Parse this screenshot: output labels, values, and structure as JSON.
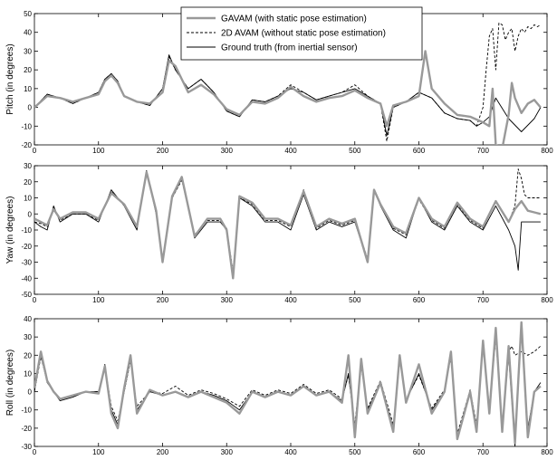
{
  "chart_data": [
    {
      "type": "line",
      "ylabel": "Pitch (in degrees)",
      "xlim": [
        0,
        800
      ],
      "ylim": [
        -20,
        50
      ],
      "xticks": [
        0,
        100,
        200,
        300,
        400,
        500,
        600,
        700,
        800
      ],
      "yticks": [
        -20,
        -10,
        0,
        10,
        20,
        30,
        40,
        50
      ],
      "grid": false,
      "legend": {
        "placement": "top-right",
        "entries": [
          {
            "label": "GAVAM (with static pose estimation)",
            "color": "#999999",
            "style": "thick-solid"
          },
          {
            "label": "2D AVAM (without static pose estimation)",
            "color": "#000000",
            "style": "dashed"
          },
          {
            "label": "Ground truth (from inertial sensor)",
            "color": "#000000",
            "style": "solid"
          }
        ]
      },
      "series": [
        {
          "color": "#000000",
          "style": "solid",
          "x": [
            0,
            20,
            40,
            60,
            80,
            100,
            110,
            120,
            130,
            140,
            160,
            180,
            200,
            210,
            220,
            240,
            260,
            280,
            300,
            320,
            340,
            360,
            380,
            400,
            420,
            440,
            460,
            480,
            500,
            520,
            540,
            550,
            560,
            580,
            600,
            620,
            640,
            660,
            680,
            690,
            700,
            710,
            720,
            740,
            760,
            780,
            790
          ],
          "y": [
            0,
            7,
            5,
            2,
            5,
            8,
            15,
            18,
            14,
            6,
            3,
            1,
            10,
            28,
            20,
            10,
            15,
            8,
            -2,
            -5,
            4,
            3,
            6,
            10,
            8,
            4,
            6,
            8,
            10,
            6,
            2,
            -15,
            0,
            3,
            8,
            5,
            -3,
            -6,
            -7,
            -10,
            -8,
            -5,
            5,
            -6,
            -13,
            -6,
            0
          ]
        },
        {
          "color": "#000000",
          "style": "dashed",
          "x": [
            0,
            20,
            40,
            60,
            80,
            100,
            110,
            120,
            130,
            140,
            160,
            180,
            200,
            210,
            220,
            240,
            260,
            280,
            300,
            320,
            340,
            360,
            380,
            400,
            420,
            440,
            460,
            480,
            500,
            520,
            540,
            550,
            560,
            580,
            600,
            620,
            640,
            660,
            680,
            690,
            700,
            705,
            710,
            715,
            720,
            725,
            730,
            735,
            740,
            745,
            750,
            755,
            760,
            765,
            770,
            775,
            780,
            785,
            790
          ],
          "y": [
            0,
            7,
            5,
            2,
            5,
            8,
            15,
            18,
            14,
            6,
            3,
            1,
            10,
            27,
            20,
            10,
            15,
            8,
            -2,
            -5,
            4,
            3,
            6,
            12,
            8,
            4,
            6,
            8,
            12,
            6,
            2,
            -18,
            0,
            3,
            8,
            5,
            -3,
            -6,
            -7,
            -10,
            0,
            20,
            38,
            42,
            20,
            45,
            44,
            36,
            40,
            42,
            30,
            38,
            42,
            40,
            43,
            42,
            44,
            43,
            44
          ]
        },
        {
          "color": "#999999",
          "style": "thick-solid",
          "x": [
            0,
            20,
            40,
            60,
            80,
            100,
            110,
            120,
            130,
            140,
            160,
            180,
            200,
            210,
            220,
            240,
            260,
            280,
            300,
            320,
            340,
            360,
            380,
            400,
            420,
            440,
            460,
            480,
            500,
            520,
            540,
            550,
            560,
            580,
            600,
            610,
            620,
            640,
            660,
            680,
            700,
            710,
            715,
            720,
            730,
            740,
            745,
            750,
            760,
            770,
            780,
            790
          ],
          "y": [
            0,
            6,
            5,
            3,
            5,
            7,
            14,
            17,
            13,
            6,
            3,
            2,
            8,
            25,
            22,
            8,
            12,
            7,
            -1,
            -4,
            3,
            2,
            5,
            11,
            6,
            3,
            5,
            6,
            9,
            5,
            2,
            -10,
            1,
            3,
            6,
            30,
            10,
            2,
            -4,
            -5,
            -8,
            -10,
            10,
            -20,
            -22,
            -4,
            13,
            5,
            -3,
            2,
            4,
            0
          ]
        }
      ]
    },
    {
      "type": "line",
      "ylabel": "Yaw (in degrees)",
      "xlim": [
        0,
        800
      ],
      "ylim": [
        -50,
        30
      ],
      "xticks": [
        0,
        100,
        200,
        300,
        400,
        500,
        600,
        700,
        800
      ],
      "yticks": [
        -50,
        -40,
        -30,
        -20,
        -10,
        0,
        10,
        20,
        30
      ],
      "grid": false,
      "series": [
        {
          "color": "#000000",
          "style": "solid",
          "x": [
            0,
            10,
            20,
            30,
            40,
            60,
            80,
            100,
            120,
            140,
            160,
            175,
            190,
            200,
            215,
            230,
            250,
            270,
            290,
            300,
            310,
            320,
            340,
            360,
            380,
            400,
            420,
            440,
            460,
            480,
            500,
            520,
            530,
            540,
            560,
            580,
            600,
            620,
            640,
            660,
            680,
            700,
            720,
            740,
            750,
            755,
            760,
            770,
            780,
            790
          ],
          "y": [
            -5,
            -8,
            -10,
            5,
            -5,
            0,
            0,
            -5,
            15,
            5,
            -10,
            27,
            0,
            -30,
            10,
            22,
            -15,
            -5,
            -5,
            -10,
            -38,
            10,
            5,
            -5,
            -5,
            -10,
            12,
            -10,
            -5,
            -8,
            -5,
            -30,
            15,
            5,
            -10,
            -15,
            10,
            -5,
            -10,
            5,
            -5,
            -10,
            5,
            -10,
            -20,
            -35,
            -5,
            -5,
            -5,
            -5
          ]
        },
        {
          "color": "#000000",
          "style": "dashed",
          "x": [
            0,
            10,
            20,
            30,
            40,
            60,
            80,
            100,
            120,
            140,
            160,
            175,
            190,
            200,
            215,
            230,
            250,
            270,
            290,
            300,
            310,
            320,
            340,
            360,
            380,
            400,
            420,
            440,
            460,
            480,
            500,
            520,
            530,
            540,
            560,
            580,
            600,
            620,
            640,
            660,
            680,
            700,
            720,
            740,
            750,
            755,
            760,
            765,
            770,
            780,
            790
          ],
          "y": [
            -5,
            -6,
            -8,
            4,
            -4,
            0,
            0,
            -4,
            14,
            6,
            -9,
            25,
            1,
            -28,
            10,
            21,
            -13,
            -4,
            -4,
            -9,
            -36,
            10,
            6,
            -4,
            -4,
            -8,
            15,
            -9,
            -4,
            -7,
            -4,
            -28,
            14,
            6,
            -9,
            -13,
            9,
            -4,
            -9,
            6,
            -4,
            -9,
            8,
            -5,
            5,
            28,
            22,
            12,
            10,
            10,
            10
          ]
        },
        {
          "color": "#999999",
          "style": "thick-solid",
          "x": [
            0,
            10,
            20,
            30,
            40,
            60,
            80,
            100,
            120,
            140,
            160,
            175,
            190,
            200,
            215,
            230,
            250,
            270,
            290,
            300,
            310,
            320,
            340,
            360,
            380,
            400,
            420,
            440,
            460,
            480,
            500,
            520,
            530,
            540,
            560,
            580,
            600,
            620,
            640,
            660,
            680,
            700,
            720,
            740,
            750,
            760,
            770,
            780,
            790
          ],
          "y": [
            -3,
            -5,
            -7,
            3,
            -3,
            1,
            1,
            -3,
            13,
            6,
            -8,
            26,
            2,
            -30,
            11,
            23,
            -14,
            -3,
            -3,
            -10,
            -40,
            11,
            7,
            -3,
            -3,
            -7,
            14,
            -8,
            -3,
            -6,
            -3,
            -30,
            15,
            6,
            -8,
            -12,
            10,
            -3,
            -8,
            7,
            -3,
            -8,
            8,
            -5,
            3,
            8,
            2,
            1,
            0
          ]
        }
      ]
    },
    {
      "type": "line",
      "ylabel": "Roll (in degrees)",
      "xlim": [
        0,
        800
      ],
      "ylim": [
        -30,
        40
      ],
      "xticks": [
        0,
        100,
        200,
        300,
        400,
        500,
        600,
        700,
        800
      ],
      "yticks": [
        -30,
        -20,
        -10,
        0,
        10,
        20,
        30,
        40
      ],
      "grid": false,
      "series": [
        {
          "color": "#000000",
          "style": "solid",
          "x": [
            0,
            10,
            20,
            30,
            40,
            60,
            80,
            100,
            110,
            120,
            130,
            140,
            150,
            160,
            180,
            200,
            220,
            240,
            260,
            280,
            300,
            320,
            340,
            360,
            380,
            400,
            420,
            440,
            460,
            480,
            490,
            500,
            510,
            520,
            540,
            560,
            570,
            580,
            600,
            620,
            640,
            650,
            660,
            680,
            690,
            700,
            710,
            720,
            730,
            740,
            750,
            760,
            770,
            780,
            790
          ],
          "y": [
            0,
            20,
            5,
            0,
            -5,
            -3,
            0,
            0,
            15,
            -10,
            -18,
            0,
            18,
            -10,
            0,
            -2,
            0,
            -3,
            0,
            -2,
            -5,
            -10,
            0,
            -3,
            0,
            -2,
            3,
            -2,
            0,
            -5,
            10,
            -20,
            15,
            -10,
            5,
            -20,
            18,
            -5,
            10,
            -10,
            0,
            20,
            -25,
            0,
            -20,
            25,
            -10,
            30,
            -20,
            20,
            -30,
            35,
            -20,
            0,
            5
          ]
        },
        {
          "color": "#000000",
          "style": "dashed",
          "x": [
            0,
            10,
            20,
            30,
            40,
            60,
            80,
            100,
            110,
            120,
            130,
            140,
            150,
            160,
            180,
            200,
            220,
            240,
            260,
            280,
            300,
            320,
            340,
            360,
            380,
            400,
            420,
            440,
            460,
            480,
            490,
            500,
            510,
            520,
            540,
            560,
            570,
            580,
            600,
            620,
            640,
            650,
            660,
            680,
            690,
            700,
            710,
            720,
            730,
            740,
            745,
            750,
            760,
            770,
            780,
            790
          ],
          "y": [
            0,
            19,
            6,
            0,
            -4,
            -2,
            0,
            0,
            14,
            -8,
            -16,
            0,
            17,
            -8,
            0,
            -1,
            3,
            -2,
            1,
            -1,
            -4,
            -8,
            1,
            -2,
            1,
            -1,
            4,
            -1,
            1,
            -4,
            9,
            -18,
            14,
            -9,
            6,
            -18,
            17,
            -4,
            9,
            -9,
            1,
            19,
            -23,
            1,
            -18,
            24,
            -8,
            29,
            -18,
            22,
            25,
            20,
            22,
            20,
            22,
            25
          ]
        },
        {
          "color": "#999999",
          "style": "thick-solid",
          "x": [
            0,
            10,
            20,
            30,
            40,
            60,
            80,
            100,
            110,
            120,
            130,
            140,
            150,
            160,
            180,
            200,
            220,
            240,
            260,
            280,
            300,
            320,
            340,
            360,
            380,
            400,
            420,
            440,
            460,
            480,
            490,
            500,
            510,
            520,
            540,
            560,
            570,
            580,
            600,
            620,
            640,
            650,
            660,
            680,
            690,
            700,
            710,
            720,
            730,
            740,
            750,
            760,
            770,
            780,
            790
          ],
          "y": [
            2,
            22,
            6,
            0,
            -4,
            -2,
            0,
            -1,
            14,
            -12,
            -20,
            2,
            20,
            -12,
            1,
            -2,
            0,
            -3,
            0,
            -3,
            -6,
            -12,
            0,
            -3,
            0,
            -2,
            3,
            -2,
            0,
            -6,
            20,
            -25,
            18,
            -12,
            5,
            -22,
            20,
            -6,
            15,
            -12,
            0,
            22,
            -26,
            0,
            -22,
            28,
            -12,
            35,
            -22,
            25,
            -28,
            38,
            -25,
            0,
            3
          ]
        }
      ]
    }
  ]
}
